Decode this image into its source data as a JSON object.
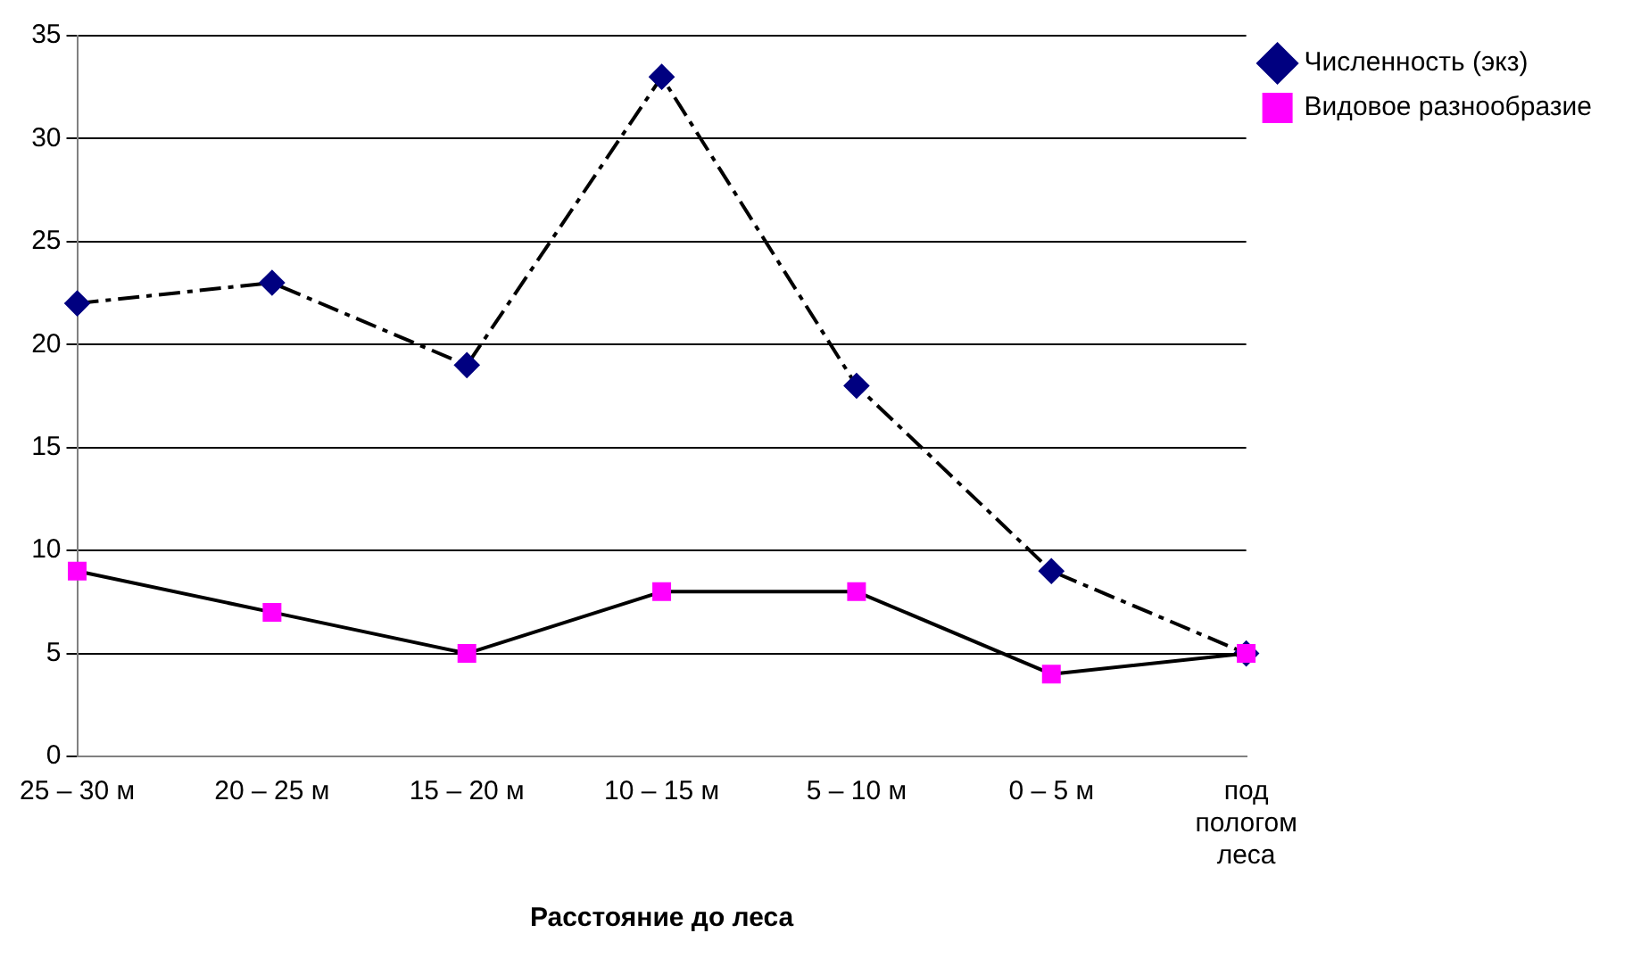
{
  "chart_data": {
    "type": "line",
    "xlabel": "Расстояние до леса",
    "categories": [
      "25 – 30 м",
      "20 – 25 м",
      "15 – 20 м",
      "10 – 15 м",
      "5 – 10 м",
      "0 – 5 м",
      "под пологом леса"
    ],
    "series": [
      {
        "name": "Численность (экз)",
        "color": "#000080",
        "marker": "diamond",
        "line_style": "dashdot",
        "values": [
          22,
          23,
          19,
          33,
          18,
          9,
          5
        ]
      },
      {
        "name": "Видовое разнообразие",
        "color": "#ff00ff",
        "marker": "square",
        "line_style": "solid",
        "values": [
          9,
          7,
          5,
          8,
          8,
          4,
          5
        ]
      }
    ],
    "ylim": [
      0,
      35
    ],
    "yticks": [
      0,
      5,
      10,
      15,
      20,
      25,
      30,
      35
    ],
    "grid": "y",
    "legend": "top right"
  }
}
